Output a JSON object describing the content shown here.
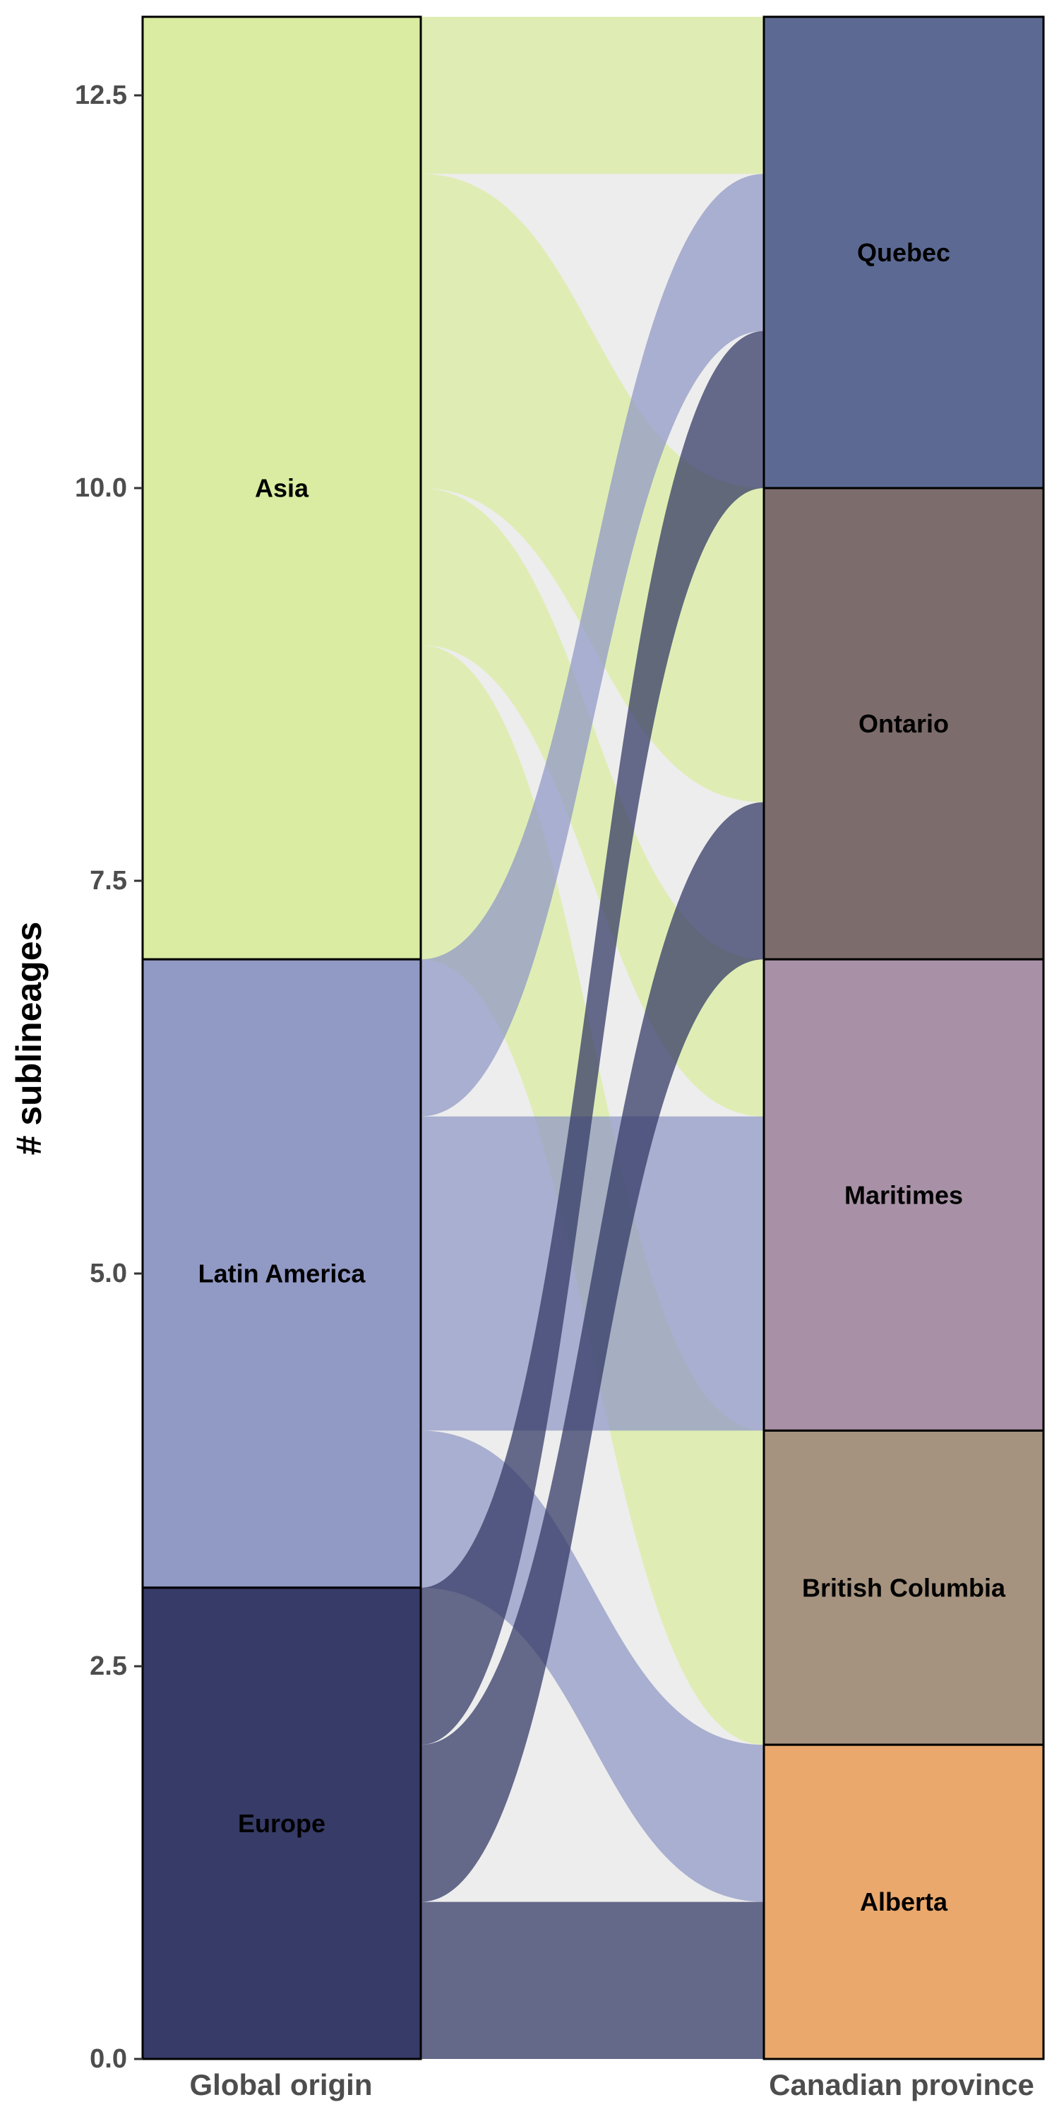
{
  "chart_data": {
    "type": "alluvial",
    "title": "",
    "xlabel": "",
    "ylabel": "# sublineages",
    "ylim": [
      0,
      13
    ],
    "yticks": [
      "0.0",
      "2.5",
      "5.0",
      "7.5",
      "10.0",
      "12.5"
    ],
    "grid": false,
    "axes": [
      "Global origin",
      "Canadian province"
    ],
    "origins": [
      {
        "name": "Asia",
        "value": 6,
        "color": "#d9eca1"
      },
      {
        "name": "Latin America",
        "value": 4,
        "color": "#9199c5"
      },
      {
        "name": "Europe",
        "value": 3,
        "color": "#363b67"
      }
    ],
    "provinces": [
      {
        "name": "Quebec",
        "value": 3,
        "color": "#5c6a93"
      },
      {
        "name": "Ontario",
        "value": 3,
        "color": "#7d6c6c"
      },
      {
        "name": "Maritimes",
        "value": 3,
        "color": "#a891a6"
      },
      {
        "name": "British Columbia",
        "value": 2,
        "color": "#a6937f"
      },
      {
        "name": "Alberta",
        "value": 2,
        "color": "#eaa86d"
      }
    ],
    "flows": [
      {
        "from": "Asia",
        "to": "Quebec",
        "value": 1
      },
      {
        "from": "Asia",
        "to": "Ontario",
        "value": 2
      },
      {
        "from": "Asia",
        "to": "Maritimes",
        "value": 1
      },
      {
        "from": "Asia",
        "to": "British Columbia",
        "value": 2
      },
      {
        "from": "Latin America",
        "to": "Quebec",
        "value": 1
      },
      {
        "from": "Latin America",
        "to": "Maritimes",
        "value": 2
      },
      {
        "from": "Latin America",
        "to": "Alberta",
        "value": 1
      },
      {
        "from": "Europe",
        "to": "Quebec",
        "value": 1
      },
      {
        "from": "Europe",
        "to": "Ontario",
        "value": 1
      },
      {
        "from": "Europe",
        "to": "Alberta",
        "value": 1
      }
    ]
  }
}
